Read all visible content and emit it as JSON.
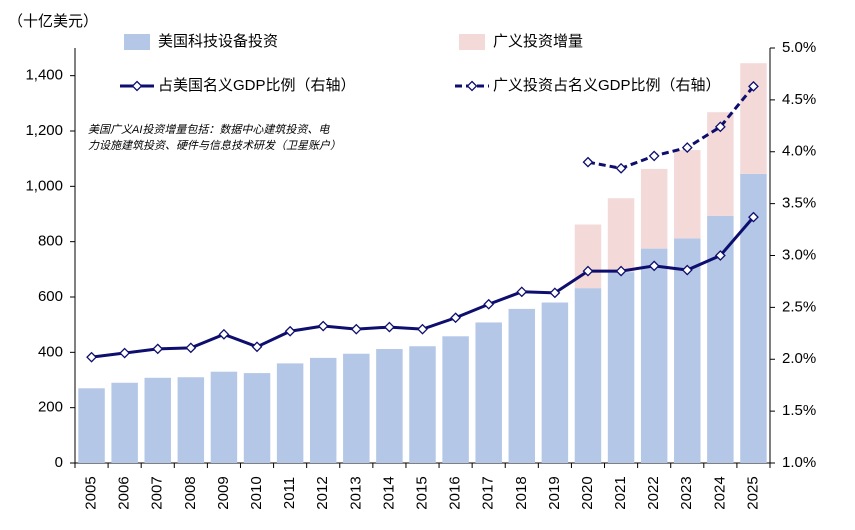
{
  "chart_data": {
    "type": "bar-line",
    "y_label": "（十亿美元）",
    "annotation": [
      "美国广义AI投资增量包括：数据中心建筑投资、电",
      "力设施建筑投资、硬件与信息技术研发（卫星账户）"
    ],
    "categories": [
      "2005",
      "2006",
      "2007",
      "2008",
      "2009",
      "2010",
      "2011",
      "2012",
      "2013",
      "2014",
      "2015",
      "2016",
      "2017",
      "2018",
      "2019",
      "2020",
      "2021",
      "2022",
      "2023",
      "2024",
      "2025"
    ],
    "series": [
      {
        "name": "美国科技设备投资",
        "type": "bar",
        "color": "#b4c7e7",
        "values": [
          270,
          290,
          308,
          310,
          330,
          325,
          360,
          380,
          395,
          412,
          422,
          458,
          508,
          557,
          580,
          632,
          690,
          775,
          812,
          893,
          1045
        ]
      },
      {
        "name": "广义投资增量",
        "type": "bar",
        "color": "#f4d9d9",
        "values": [
          null,
          null,
          null,
          null,
          null,
          null,
          null,
          null,
          null,
          null,
          null,
          null,
          null,
          null,
          null,
          230,
          267,
          288,
          319,
          375,
          400
        ]
      },
      {
        "name": "占美国名义GDP比例（右轴）",
        "type": "line",
        "axis": "y2",
        "color": "#0e0e6e",
        "dashed": false,
        "values": [
          2.02,
          2.06,
          2.1,
          2.11,
          2.24,
          2.12,
          2.27,
          2.32,
          2.29,
          2.31,
          2.29,
          2.4,
          2.53,
          2.65,
          2.64,
          2.85,
          2.85,
          2.9,
          2.86,
          3.0,
          3.37
        ]
      },
      {
        "name": "广义投资占名义GDP比例（右轴）",
        "type": "line",
        "axis": "y2",
        "color": "#0e0e6e",
        "dashed": true,
        "values": [
          null,
          null,
          null,
          null,
          null,
          null,
          null,
          null,
          null,
          null,
          null,
          null,
          null,
          null,
          null,
          3.9,
          3.84,
          3.96,
          4.04,
          4.24,
          4.63
        ]
      }
    ],
    "ylim": [
      0,
      1500
    ],
    "yticks": [
      0,
      200,
      400,
      600,
      800,
      {
        "value": 1000,
        "label": "1,000"
      },
      {
        "value": 1200,
        "label": "1,200"
      },
      {
        "value": 1400,
        "label": "1,400"
      }
    ],
    "y2lim": [
      1.0,
      5.0
    ],
    "y2ticks": [
      {
        "value": 1.0,
        "label": "1.0%"
      },
      {
        "value": 1.5,
        "label": "1.5%"
      },
      {
        "value": 2.0,
        "label": "2.0%"
      },
      {
        "value": 2.5,
        "label": "2.5%"
      },
      {
        "value": 3.0,
        "label": "3.0%"
      },
      {
        "value": 3.5,
        "label": "3.5%"
      },
      {
        "value": 4.0,
        "label": "4.0%"
      },
      {
        "value": 4.5,
        "label": "4.5%"
      },
      {
        "value": 5.0,
        "label": "5.0%"
      }
    ],
    "grid": false
  }
}
